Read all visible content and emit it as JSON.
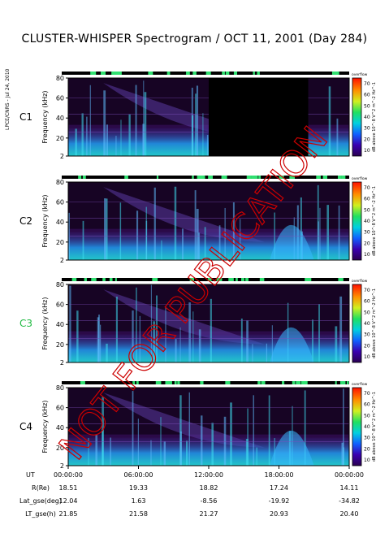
{
  "title": "CLUSTER-WHISPER Spectrogram / OCT 11, 2001 (Day 284)",
  "side_info": "LPCE/CNRS - Jul 24, 2010",
  "watermark": "NOT FOR PUBLICATION",
  "colors": {
    "background_dark": "#0a0208",
    "c3_label": "#22bb44",
    "watermark": "#cc0000",
    "band_low": "#22d4e0",
    "band_high": "#3060ff"
  },
  "chart_data": {
    "type": "heatmap",
    "x_unit": "UT",
    "x_range": [
      "00:00:00",
      "00:00:00"
    ],
    "x_ticks": [
      "00:00:00",
      "06:00:00",
      "12:00:00",
      "18:00:00",
      "00:00:00"
    ],
    "y_ticks": [
      2,
      20,
      40,
      60,
      80
    ],
    "y_range": [
      2,
      80
    ],
    "ylabel": "Frequency (kHz)",
    "colorbar": {
      "label": "dB above 10^-8 V^2 m^-2 Hz^-1",
      "ticks": [
        10,
        20,
        30,
        40,
        50,
        60,
        70
      ],
      "top_label": "overflow"
    },
    "panels": [
      {
        "name": "C1",
        "label_color": "#000000",
        "no_data_ut": [
          [
            "12:00:00",
            "20:30:00"
          ]
        ]
      },
      {
        "name": "C2",
        "label_color": "#000000",
        "no_data_ut": []
      },
      {
        "name": "C3",
        "label_color": "#22bb44",
        "no_data_ut": []
      },
      {
        "name": "C4",
        "label_color": "#000000",
        "no_data_ut": []
      }
    ],
    "ephemeris": {
      "rows": [
        {
          "label": "R(Re)",
          "values": [
            "18.51",
            "19.33",
            "18.82",
            "17.24",
            "14.11"
          ]
        },
        {
          "label": "Lat_gse(deg)",
          "values": [
            "12.04",
            "1.63",
            "-8.56",
            "-19.92",
            "-34.82"
          ]
        },
        {
          "label": "LT_gse(h)",
          "values": [
            "21.85",
            "21.58",
            "21.27",
            "20.93",
            "20.40"
          ]
        }
      ],
      "ut_label": "UT"
    }
  }
}
